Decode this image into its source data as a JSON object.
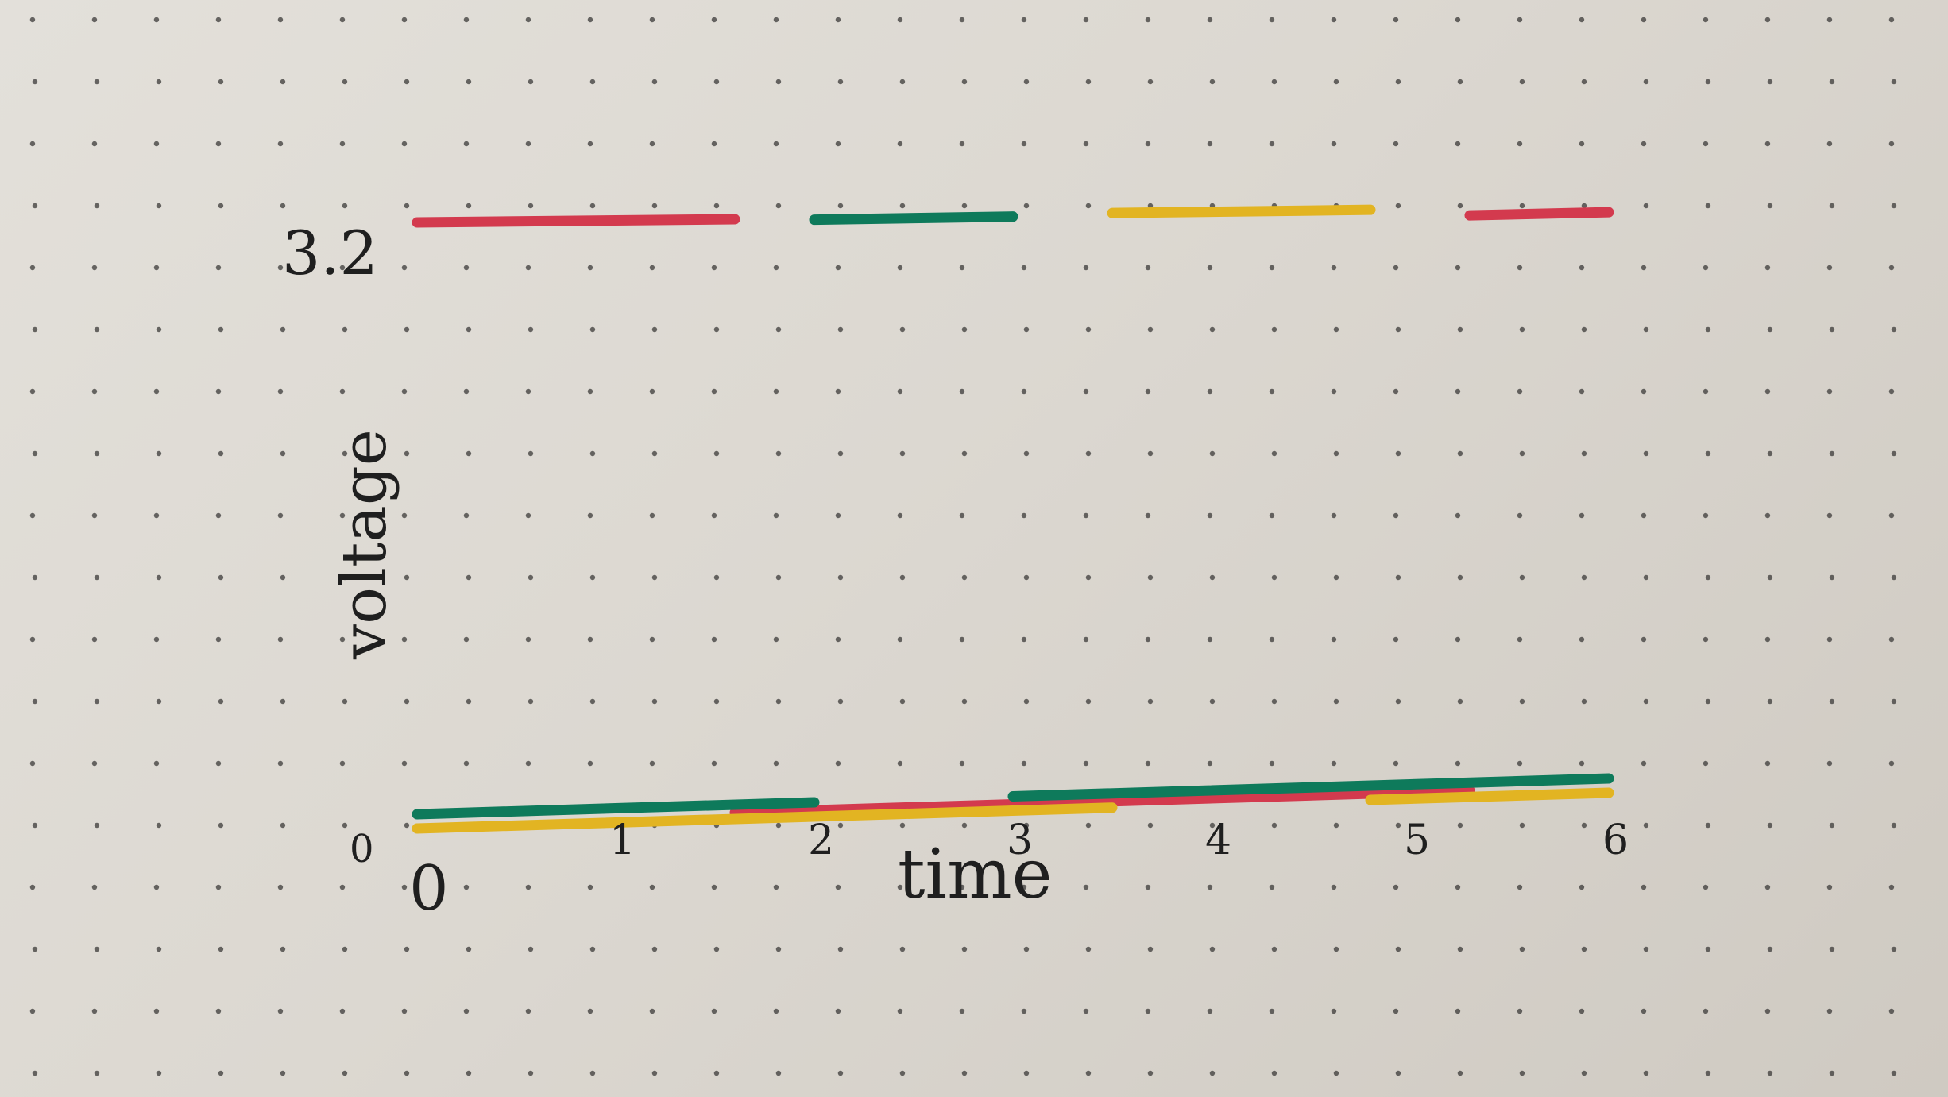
{
  "chart_data": {
    "type": "line",
    "title": "",
    "xlabel": "time",
    "ylabel": "voltage",
    "x_ticks": [
      "0",
      "1",
      "2",
      "3",
      "4",
      "5",
      "6"
    ],
    "y_ticks": [
      "0",
      "3.2"
    ],
    "xlim": [
      0,
      6
    ],
    "ylim": [
      0,
      3.2
    ],
    "grid": "dot-grid paper",
    "colors": {
      "red": "#d33a4e",
      "green": "#0e7a5b",
      "yellow": "#e2b422",
      "ink": "#1f1f1f"
    },
    "series": [
      {
        "color": "red",
        "high": [
          [
            0,
            1.6
          ],
          [
            5.3,
            6
          ]
        ]
      },
      {
        "color": "green",
        "high": [
          [
            2,
            3
          ]
        ]
      },
      {
        "color": "yellow",
        "high": [
          [
            3.5,
            4.8
          ]
        ]
      }
    ]
  }
}
